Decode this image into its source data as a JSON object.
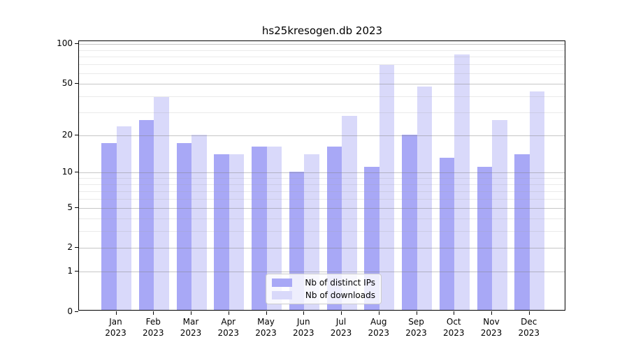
{
  "title": "hs25kresogen.db 2023",
  "chart_data": {
    "type": "bar",
    "title": "hs25kresogen.db 2023",
    "categories": [
      "Jan",
      "Feb",
      "Mar",
      "Apr",
      "May",
      "Jun",
      "Jul",
      "Aug",
      "Sep",
      "Oct",
      "Nov",
      "Dec"
    ],
    "category_year": "2023",
    "series": [
      {
        "name": "Nb of distinct IPs",
        "color": "#a8a8f6",
        "values": [
          17,
          26,
          17,
          14,
          16,
          10,
          16,
          11,
          20,
          13,
          11,
          14
        ]
      },
      {
        "name": "Nb of downloads",
        "color": "#d9d9fa",
        "values": [
          23,
          39,
          20,
          14,
          16,
          14,
          28,
          69,
          47,
          82,
          26,
          43
        ]
      }
    ],
    "xlabel": "",
    "ylabel": "",
    "yscale": "log1p",
    "ylim": [
      0,
      104
    ],
    "yticks": [
      100,
      50,
      20,
      10,
      5,
      2,
      1,
      0
    ],
    "minor_gridlines": [
      3,
      4,
      6,
      7,
      8,
      9,
      30,
      40,
      60,
      70,
      80,
      90
    ],
    "grid": true,
    "legend_position": "lower center"
  }
}
